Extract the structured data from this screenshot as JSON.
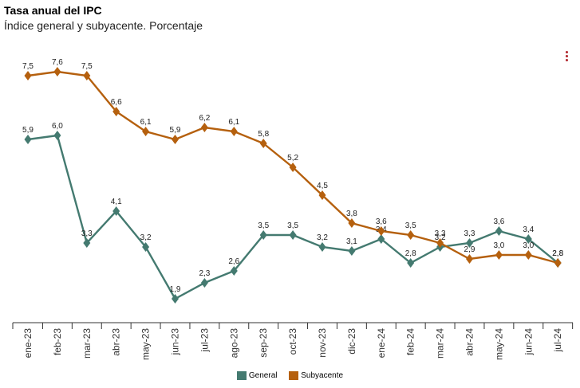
{
  "header": {
    "title": "Tasa anual del IPC",
    "subtitle": "Índice general y subyacente. Porcentaje"
  },
  "chart_data": {
    "type": "line",
    "title": "Tasa anual del IPC",
    "subtitle": "Índice general y subyacente. Porcentaje",
    "categories": [
      "ene-23",
      "feb-23",
      "mar-23",
      "abr-23",
      "may-23",
      "jun-23",
      "jul-23",
      "ago-23",
      "sep-23",
      "oct-23",
      "nov-23",
      "dic-23",
      "ene-24",
      "feb-24",
      "mar-24",
      "abr-24",
      "may-24",
      "jun-24",
      "jul-24"
    ],
    "series": [
      {
        "name": "General",
        "color": "#447a70",
        "values": [
          5.9,
          6.0,
          3.3,
          4.1,
          3.2,
          1.9,
          2.3,
          2.6,
          3.5,
          3.5,
          3.2,
          3.1,
          3.4,
          2.8,
          3.2,
          3.3,
          3.6,
          3.4,
          2.8
        ],
        "labels": [
          "5,9",
          "6,0",
          "3,3",
          "4,1",
          "3,2",
          "1,9",
          "2,3",
          "2,6",
          "3,5",
          "3,5",
          "3,2",
          "3,1",
          "3,4",
          "2,8",
          "3,2",
          "3,3",
          "3,6",
          "3,4",
          "2,8"
        ]
      },
      {
        "name": "Subyacente",
        "color": "#b5600e",
        "values": [
          7.5,
          7.6,
          7.5,
          6.6,
          6.1,
          5.9,
          6.2,
          6.1,
          5.8,
          5.2,
          4.5,
          3.8,
          3.6,
          3.5,
          3.3,
          2.9,
          3.0,
          3.0,
          2.8
        ],
        "labels": [
          "7,5",
          "7,6",
          "7,5",
          "6,6",
          "6,1",
          "5,9",
          "6,2",
          "6,1",
          "5,8",
          "5,2",
          "4,5",
          "3,8",
          "3,6",
          "3,5",
          "3,3",
          "2,9",
          "3,0",
          "3,0",
          "2,8"
        ]
      }
    ],
    "ylim": [
      1.3,
      8.0
    ],
    "grid": false,
    "legend": "bottom-center",
    "xlabel": "",
    "ylabel": ""
  }
}
